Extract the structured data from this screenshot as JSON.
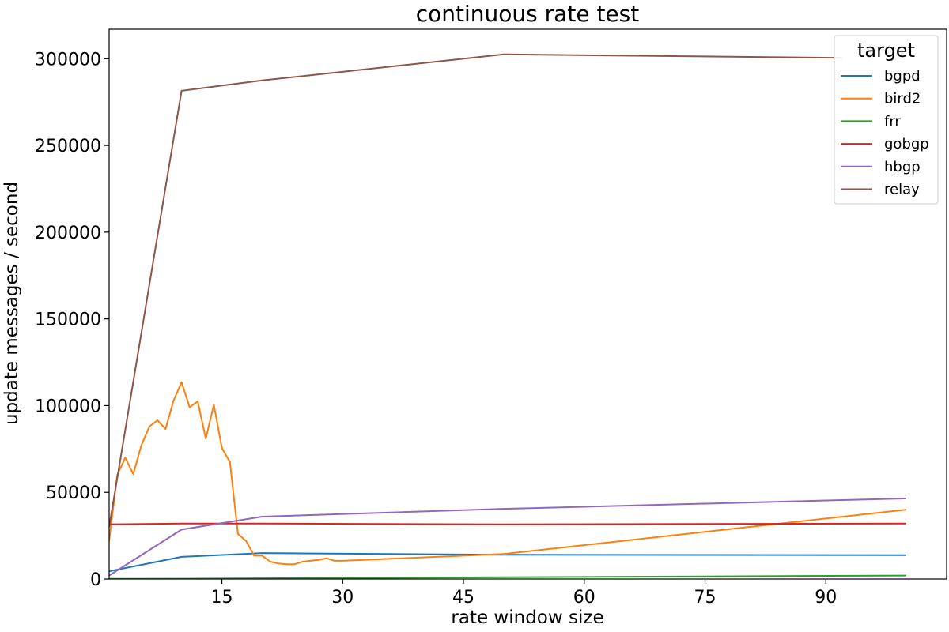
{
  "chart_data": {
    "type": "line",
    "title": "continuous rate test",
    "xlabel": "rate window size",
    "ylabel": "update messages / second",
    "xlim": [
      1,
      105
    ],
    "ylim": [
      0,
      317000
    ],
    "xticks": [
      15,
      30,
      45,
      60,
      75,
      90
    ],
    "yticks": [
      0,
      50000,
      100000,
      150000,
      200000,
      250000,
      300000
    ],
    "grid": false,
    "legend": {
      "title": "target",
      "placement": "top-right"
    },
    "series": [
      {
        "name": "bgpd",
        "color": "#1f77b4",
        "x": [
          1,
          10,
          20,
          50,
          100
        ],
        "y": [
          4500,
          12800,
          15000,
          14000,
          13800
        ]
      },
      {
        "name": "bird2",
        "color": "#ff7f0e",
        "x": [
          1,
          2,
          3,
          4,
          5,
          6,
          7,
          8,
          9,
          10,
          11,
          12,
          13,
          14,
          15,
          16,
          17,
          18,
          19,
          20,
          21,
          22,
          23,
          24,
          25,
          26,
          27,
          28,
          29,
          30,
          50,
          100
        ],
        "y": [
          22000,
          60000,
          70000,
          60500,
          77000,
          88000,
          91500,
          86500,
          103000,
          113500,
          99000,
          102500,
          81000,
          100500,
          75500,
          67500,
          26000,
          22000,
          13500,
          13500,
          10000,
          9000,
          8500,
          8500,
          10000,
          10500,
          11000,
          12000,
          10500,
          10500,
          14500,
          40000
        ]
      },
      {
        "name": "frr",
        "color": "#2ca02c",
        "x": [
          1,
          10,
          20,
          50,
          100
        ],
        "y": [
          100,
          200,
          400,
          1000,
          2000
        ]
      },
      {
        "name": "gobgp",
        "color": "#d62728",
        "x": [
          1,
          10,
          20,
          50,
          100
        ],
        "y": [
          31500,
          32000,
          32000,
          31500,
          32000
        ]
      },
      {
        "name": "hbgp",
        "color": "#9467bd",
        "x": [
          1,
          10,
          20,
          50,
          100
        ],
        "y": [
          2000,
          28500,
          36000,
          40500,
          46500
        ]
      },
      {
        "name": "relay",
        "color": "#8c564b",
        "x": [
          1,
          10,
          20,
          50,
          92
        ],
        "y": [
          30000,
          281500,
          287500,
          302500,
          300500
        ]
      }
    ]
  }
}
